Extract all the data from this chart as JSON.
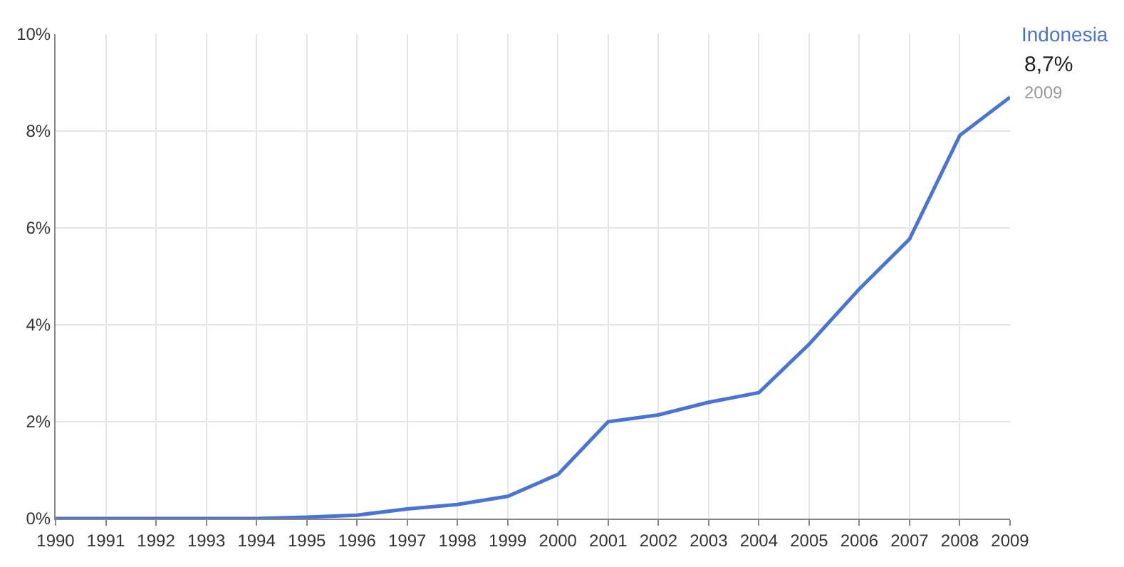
{
  "chart_data": {
    "type": "line",
    "x": [
      1990,
      1991,
      1992,
      1993,
      1994,
      1995,
      1996,
      1997,
      1998,
      1999,
      2000,
      2001,
      2002,
      2003,
      2004,
      2005,
      2006,
      2007,
      2008,
      2009
    ],
    "series": [
      {
        "name": "Indonesia",
        "color": "#4a74d4",
        "values": [
          0,
          0,
          0,
          0,
          0,
          0.03,
          0.07,
          0.2,
          0.29,
          0.46,
          0.91,
          2.0,
          2.14,
          2.4,
          2.6,
          3.6,
          4.74,
          5.77,
          7.91,
          8.7
        ]
      }
    ],
    "xlim": [
      1990,
      2009
    ],
    "xticks": [
      1990,
      1991,
      1992,
      1993,
      1994,
      1995,
      1996,
      1997,
      1998,
      1999,
      2000,
      2001,
      2002,
      2003,
      2004,
      2005,
      2006,
      2007,
      2008,
      2009
    ],
    "ylim": [
      0,
      10
    ],
    "yticks": [
      {
        "value": 0,
        "label": "0%"
      },
      {
        "value": 2,
        "label": "2%"
      },
      {
        "value": 4,
        "label": "4%"
      },
      {
        "value": 6,
        "label": "6%"
      },
      {
        "value": 8,
        "label": "8%"
      },
      {
        "value": 10,
        "label": "10%"
      }
    ],
    "annotations": [
      {
        "text": "8,7%",
        "x": 2009,
        "y": 8.7
      },
      {
        "text": "2009",
        "x": 2009,
        "y": 8.7
      }
    ],
    "grid": true,
    "legend": false,
    "marker": "none",
    "line_style": "solid"
  }
}
